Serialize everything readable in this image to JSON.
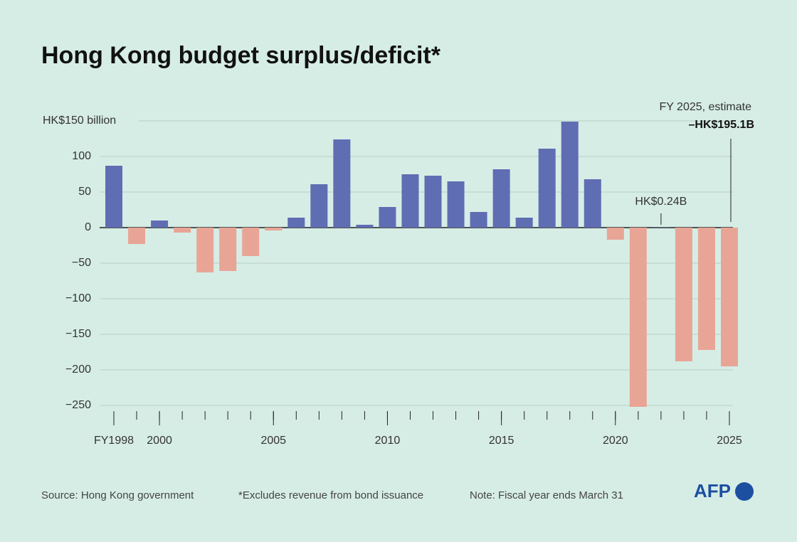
{
  "chart_data": {
    "type": "bar",
    "title": "Hong Kong budget surplus/deficit*",
    "x": [
      1998,
      1999,
      2000,
      2001,
      2002,
      2003,
      2004,
      2005,
      2006,
      2007,
      2008,
      2009,
      2010,
      2011,
      2012,
      2013,
      2014,
      2015,
      2016,
      2017,
      2018,
      2019,
      2020,
      2021,
      2022,
      2023,
      2024,
      2025
    ],
    "values": [
      87,
      -23,
      10,
      -7,
      -63,
      -61,
      -40,
      -4,
      14,
      61,
      124,
      4,
      29,
      75,
      73,
      65,
      22,
      82,
      14,
      111,
      149,
      68,
      -17,
      -252,
      0.24,
      -188,
      -172,
      -195.1
    ],
    "value_labels": [
      null,
      null,
      null,
      null,
      null,
      null,
      null,
      null,
      null,
      null,
      null,
      null,
      null,
      null,
      null,
      null,
      null,
      null,
      null,
      null,
      null,
      null,
      null,
      null,
      "HK$0.24B",
      null,
      null,
      "–HK$195.1B"
    ],
    "positive_color": "#5f6db3",
    "negative_color": "#e8a595",
    "annotation": "FY 2025, estimate",
    "ylim": [
      -253,
      153
    ],
    "yticks": [
      -250,
      -200,
      -150,
      -100,
      -50,
      0,
      50,
      100,
      {
        "value": 150,
        "label": "HK$150 billion"
      }
    ],
    "ytick_labels_minus": [
      "−250",
      "−200",
      "−150",
      "−100",
      "−50"
    ],
    "xticks": [
      {
        "value": 1998,
        "label": "FY1998"
      },
      2000,
      2005,
      2010,
      2015,
      2020,
      2025
    ],
    "grid": true,
    "source": "Source: Hong Kong government",
    "footnote": "*Excludes revenue from bond issuance",
    "note": "Note: Fiscal year ends March 31",
    "logo": "AFP"
  }
}
